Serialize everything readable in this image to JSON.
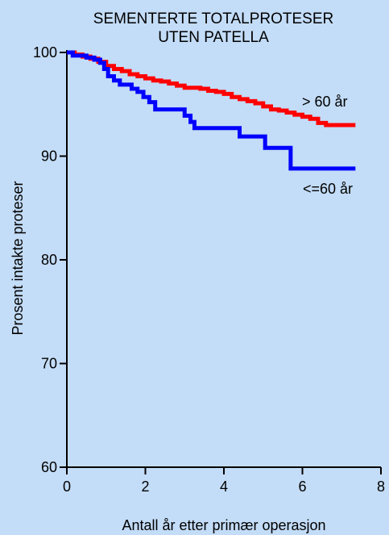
{
  "chart_data": {
    "type": "line",
    "title_lines": [
      "SEMENTERTE TOTALPROTESER",
      "UTEN PATELLA"
    ],
    "xlabel": "Antall år etter primær operasjon",
    "ylabel": "Prosent intakte proteser",
    "xlim": [
      0,
      8
    ],
    "ylim": [
      60,
      100
    ],
    "xticks": [
      "0",
      "2",
      "4",
      "6",
      "8"
    ],
    "yticks": [
      "60",
      "70",
      "80",
      "90",
      "100"
    ],
    "grid": false,
    "series": [
      {
        "name": "> 60 år",
        "color": "#ff0000",
        "x": [
          0,
          0.2,
          0.4,
          0.6,
          0.8,
          1.0,
          1.2,
          1.4,
          1.6,
          1.8,
          2.0,
          2.2,
          2.4,
          2.6,
          2.8,
          3.0,
          3.2,
          3.4,
          3.6,
          3.8,
          4.0,
          4.2,
          4.4,
          4.6,
          4.8,
          5.0,
          5.2,
          5.4,
          5.6,
          5.8,
          6.0,
          6.2,
          6.4,
          6.6,
          6.8,
          7.0,
          7.2,
          7.35
        ],
        "y": [
          100,
          99.8,
          99.6,
          99.4,
          99.1,
          98.7,
          98.4,
          98.2,
          97.9,
          97.7,
          97.5,
          97.3,
          97.2,
          97.0,
          96.8,
          96.6,
          96.6,
          96.5,
          96.3,
          96.2,
          96.0,
          95.7,
          95.5,
          95.3,
          95.1,
          94.8,
          94.5,
          94.4,
          94.2,
          94.0,
          93.8,
          93.6,
          93.2,
          93.0,
          93.0,
          93.0,
          93.0,
          93.0
        ]
      },
      {
        "name": "<=60 år",
        "color": "#0000ff",
        "x": [
          0,
          0.15,
          0.3,
          0.5,
          0.7,
          0.85,
          0.95,
          1.05,
          1.2,
          1.35,
          1.5,
          1.65,
          1.8,
          1.95,
          2.1,
          2.25,
          2.5,
          2.9,
          3.0,
          3.15,
          3.25,
          3.5,
          4.2,
          4.4,
          4.95,
          5.05,
          5.6,
          5.7,
          7.35
        ],
        "y": [
          100,
          99.7,
          99.7,
          99.5,
          99.3,
          99.0,
          98.4,
          97.7,
          97.3,
          96.9,
          96.9,
          96.5,
          96.2,
          95.7,
          95.2,
          94.5,
          94.5,
          94.5,
          93.9,
          93.3,
          92.7,
          92.7,
          92.7,
          91.9,
          91.9,
          90.8,
          90.8,
          88.8,
          88.8
        ]
      }
    ]
  }
}
